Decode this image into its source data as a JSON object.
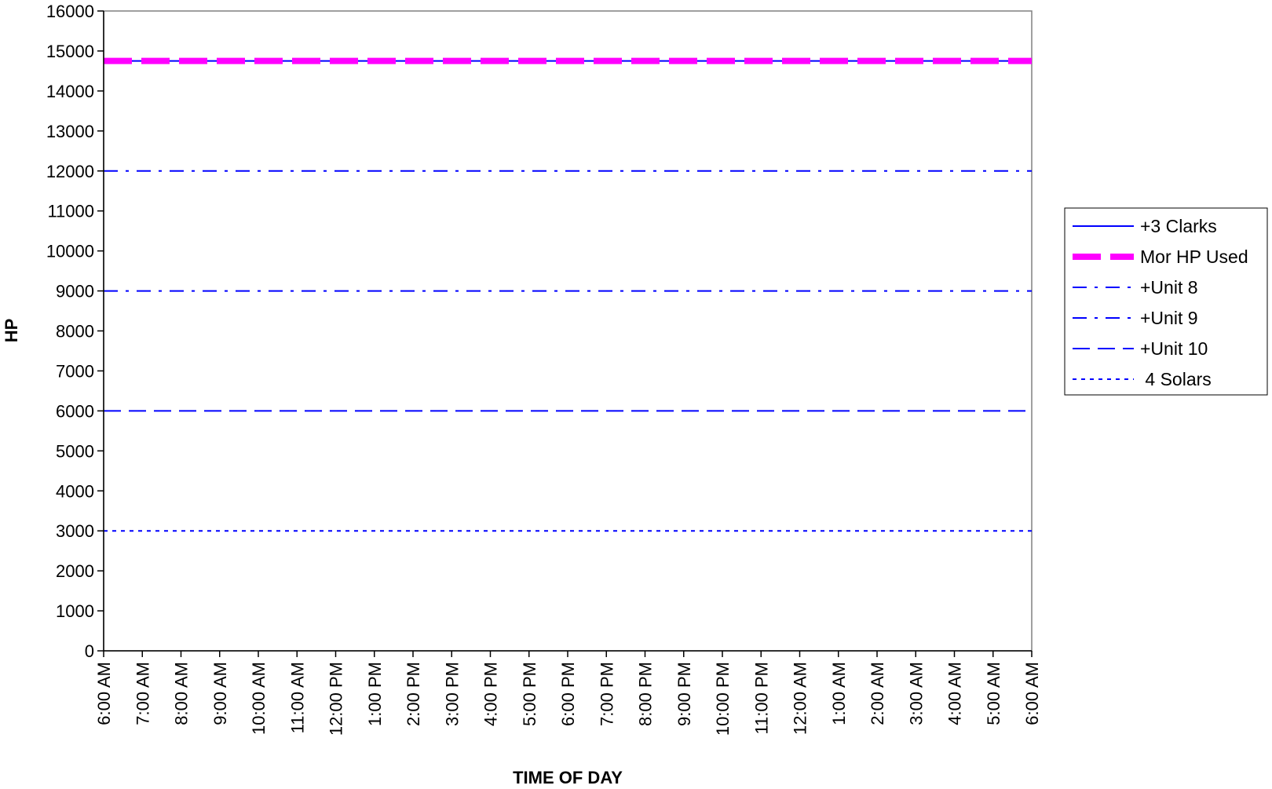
{
  "chart_data": {
    "type": "line",
    "title": "",
    "xlabel": "TIME OF DAY",
    "ylabel": "HP",
    "ylim": [
      0,
      16000
    ],
    "y_ticks": [
      0,
      1000,
      2000,
      3000,
      4000,
      5000,
      6000,
      7000,
      8000,
      9000,
      10000,
      11000,
      12000,
      13000,
      14000,
      15000,
      16000
    ],
    "categories": [
      "6:00 AM",
      "7:00 AM",
      "8:00 AM",
      "9:00 AM",
      "10:00 AM",
      "11:00 AM",
      "12:00 PM",
      "1:00 PM",
      "2:00 PM",
      "3:00 PM",
      "4:00 PM",
      "5:00 PM",
      "6:00 PM",
      "7:00 PM",
      "8:00 PM",
      "9:00 PM",
      "10:00 PM",
      "11:00 PM",
      "12:00 AM",
      "1:00 AM",
      "2:00 AM",
      "3:00 AM",
      "4:00 AM",
      "5:00 AM",
      "6:00 AM"
    ],
    "grid": false,
    "legend_position": "right",
    "series": [
      {
        "name": "+3 Clarks",
        "value": 14750,
        "color": "#0000ff",
        "style": "solid"
      },
      {
        "name": "Mor HP Used",
        "value": 14750,
        "color": "#ff00ff",
        "style": "dash-thick"
      },
      {
        "name": "+Unit 8",
        "value": 12000,
        "color": "#0000ff",
        "style": "dash-dot"
      },
      {
        "name": "+Unit 9",
        "value": 9000,
        "color": "#0000ff",
        "style": "dash-dot"
      },
      {
        "name": "+Unit 10",
        "value": 6000,
        "color": "#0000ff",
        "style": "dash"
      },
      {
        "name": " 4 Solars",
        "value": 3000,
        "color": "#0000ff",
        "style": "dot"
      }
    ]
  }
}
